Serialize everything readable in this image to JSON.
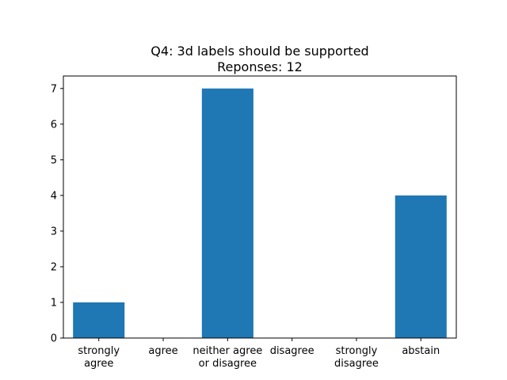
{
  "chart_data": {
    "type": "bar",
    "title_lines": [
      "Q4: 3d labels should be supported",
      "Reponses: 12"
    ],
    "categories": [
      [
        "strongly",
        "agree"
      ],
      [
        "agree"
      ],
      [
        "neither agree",
        "or disagree"
      ],
      [
        "disagree"
      ],
      [
        "strongly",
        "disagree"
      ],
      [
        "abstain"
      ]
    ],
    "values": [
      1,
      0,
      7,
      0,
      0,
      4
    ],
    "yticks": [
      0,
      1,
      2,
      3,
      4,
      5,
      6,
      7
    ],
    "ylim": [
      0,
      7.35
    ],
    "xlabel": "",
    "ylabel": "",
    "grid": false,
    "bar_color": "#1f77b4"
  }
}
